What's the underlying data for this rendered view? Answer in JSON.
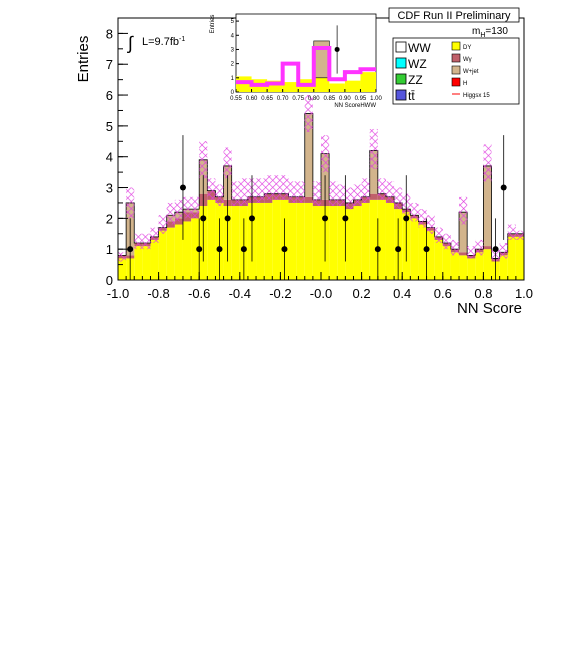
{
  "chart_data": {
    "type": "bar",
    "preliminary_label": "CDF Run II Preliminary",
    "luminosity_label": "L=9.7fb",
    "luminosity_exp": "-1",
    "mass_label_prefix": "m",
    "mass_label_sub": "H",
    "mass_label_value": "=130",
    "xlabel": "NN Score",
    "ylabel": "Entries",
    "xlim": [
      -1.0,
      1.0
    ],
    "ylim": [
      0,
      8.5
    ],
    "xticks": [
      "-1.0",
      "-0.8",
      "-0.6",
      "-0.4",
      "-0.2",
      "-0.0",
      "0.2",
      "0.4",
      "0.6",
      "0.8",
      "1.0"
    ],
    "yticks": [
      "0",
      "1",
      "2",
      "3",
      "4",
      "5",
      "6",
      "7",
      "8"
    ],
    "bin_low_edges": [
      -1.0,
      -0.96,
      -0.92,
      -0.88,
      -0.84,
      -0.8,
      -0.76,
      -0.72,
      -0.68,
      -0.64,
      -0.6,
      -0.56,
      -0.52,
      -0.48,
      -0.44,
      -0.4,
      -0.36,
      -0.32,
      -0.28,
      -0.24,
      -0.2,
      -0.16,
      -0.12,
      -0.08,
      -0.04,
      0.0,
      0.04,
      0.08,
      0.12,
      0.16,
      0.2,
      0.24,
      0.28,
      0.32,
      0.36,
      0.4,
      0.44,
      0.48,
      0.52,
      0.56,
      0.6,
      0.64,
      0.68,
      0.72,
      0.76,
      0.8,
      0.84,
      0.88,
      0.92,
      0.96
    ],
    "series": [
      {
        "name": "DY",
        "color": "#ffff00",
        "values": [
          0.7,
          0.7,
          1.1,
          1.1,
          1.3,
          1.6,
          1.7,
          1.8,
          1.9,
          2.0,
          2.4,
          2.6,
          2.5,
          2.4,
          2.4,
          2.4,
          2.5,
          2.5,
          2.5,
          2.6,
          2.6,
          2.5,
          2.5,
          2.5,
          2.4,
          2.4,
          2.4,
          2.4,
          2.3,
          2.4,
          2.5,
          2.6,
          2.6,
          2.5,
          2.3,
          2.2,
          2.0,
          1.8,
          1.6,
          1.3,
          1.1,
          0.9,
          0.8,
          0.7,
          0.9,
          1.0,
          0.6,
          0.8,
          1.4,
          1.4
        ]
      },
      {
        "name": "Wγ",
        "color": "#c0606a",
        "values": [
          0.1,
          0.1,
          0.1,
          0.1,
          0.1,
          0.1,
          0.2,
          0.2,
          0.3,
          0.2,
          0.4,
          0.3,
          0.2,
          0.2,
          0.2,
          0.2,
          0.2,
          0.2,
          0.3,
          0.2,
          0.2,
          0.2,
          0.2,
          0.2,
          0.2,
          0.2,
          0.2,
          0.2,
          0.2,
          0.2,
          0.2,
          0.2,
          0.2,
          0.2,
          0.2,
          0.1,
          0.1,
          0.1,
          0.1,
          0.1,
          0.1,
          0.1,
          0.1,
          0.1,
          0.1,
          0.1,
          0.1,
          0.1,
          0.1,
          0.1
        ]
      },
      {
        "name": "W+jet",
        "color": "#d2b48c",
        "values": [
          0.0,
          1.7,
          0.0,
          0.0,
          0.0,
          0.0,
          0.2,
          0.2,
          0.1,
          0.1,
          1.1,
          0.0,
          0.0,
          1.1,
          0.0,
          0.0,
          0.0,
          0.0,
          0.0,
          0.0,
          0.0,
          0.0,
          0.0,
          2.7,
          0.0,
          1.5,
          0.0,
          0.0,
          0.0,
          0.0,
          0.0,
          1.4,
          0.0,
          0.0,
          0.0,
          0.0,
          0.0,
          0.0,
          0.0,
          0.0,
          0.0,
          0.0,
          1.3,
          0.0,
          0.0,
          2.6,
          0.0,
          0.0,
          0.0,
          0.0
        ]
      }
    ],
    "uncertainty_band": {
      "color": "#e040e0",
      "total_upper": [
        0.9,
        3.0,
        1.5,
        1.5,
        1.7,
        2.1,
        2.5,
        2.6,
        2.7,
        2.7,
        4.5,
        3.3,
        3.1,
        4.3,
        3.2,
        3.3,
        3.3,
        3.3,
        3.4,
        3.4,
        3.4,
        3.2,
        3.2,
        6.0,
        3.2,
        4.7,
        3.2,
        3.1,
        3.0,
        3.1,
        3.3,
        4.9,
        3.3,
        3.2,
        3.0,
        2.8,
        2.5,
        2.3,
        2.1,
        1.7,
        1.5,
        1.3,
        2.7,
        1.1,
        1.3,
        4.4,
        1.0,
        1.2,
        1.8,
        1.6
      ],
      "total_lower": [
        0.6,
        2.0,
        1.0,
        1.0,
        1.2,
        1.5,
        1.8,
        1.9,
        2.0,
        2.0,
        3.3,
        2.6,
        2.4,
        3.3,
        2.4,
        2.4,
        2.5,
        2.5,
        2.6,
        2.6,
        2.6,
        2.5,
        2.5,
        4.8,
        2.4,
        3.5,
        2.4,
        2.4,
        2.3,
        2.4,
        2.5,
        3.6,
        2.6,
        2.5,
        2.3,
        2.1,
        1.9,
        1.7,
        1.5,
        1.2,
        1.0,
        0.8,
        1.8,
        0.7,
        0.8,
        3.2,
        0.6,
        0.7,
        1.3,
        1.3
      ]
    },
    "data_points": {
      "name": "Data",
      "x": [
        -0.94,
        -0.68,
        -0.6,
        -0.58,
        -0.5,
        -0.46,
        -0.38,
        -0.34,
        -0.18,
        0.02,
        0.12,
        0.28,
        0.38,
        0.42,
        0.52,
        0.86,
        0.9
      ],
      "y": [
        1,
        3,
        1,
        2,
        1,
        2,
        1,
        2,
        1,
        2,
        2,
        1,
        1,
        2,
        1,
        1,
        3
      ],
      "err": [
        1.0,
        1.7,
        1.0,
        1.4,
        1.0,
        1.4,
        1.0,
        1.4,
        1.0,
        1.4,
        1.4,
        1.0,
        1.0,
        1.4,
        1.0,
        1.0,
        1.7
      ]
    },
    "legend": {
      "placement": "top-right",
      "left": [
        {
          "label": "WW",
          "color": "#ffffff"
        },
        {
          "label": "WZ",
          "color": "#00ffff"
        },
        {
          "label": "ZZ",
          "color": "#33cc33"
        },
        {
          "label": "tt̄",
          "color": "#5555dd"
        }
      ],
      "right": [
        {
          "label": "DY",
          "color": "#ffff00"
        },
        {
          "label": "Wγ",
          "color": "#c0606a"
        },
        {
          "label": "W+jet",
          "color": "#d2b48c"
        },
        {
          "label": "H",
          "color": "#ff0000"
        },
        {
          "label": "Higgsx 15",
          "color": "#ff0000",
          "line": true
        }
      ]
    },
    "inset": {
      "xlabel": "NN ScoreHWW",
      "ylabel": "Entries",
      "xlim": [
        0.55,
        1.0
      ],
      "ylim": [
        0,
        5.5
      ],
      "xticks": [
        "0.55",
        "0.60",
        "0.65",
        "0.70",
        "0.75",
        "0.80",
        "0.85",
        "0.90",
        "0.95",
        "1.00"
      ],
      "yticks": [
        "0",
        "1",
        "2",
        "3",
        "4",
        "5"
      ],
      "bin_low_edges": [
        0.55,
        0.6,
        0.65,
        0.7,
        0.75,
        0.8,
        0.85,
        0.9,
        0.95
      ],
      "bkg_dy": [
        1.1,
        0.9,
        0.8,
        0.7,
        0.9,
        1.0,
        0.6,
        0.8,
        1.4
      ],
      "bkg_wjet": [
        0.0,
        0.0,
        0.0,
        0.0,
        0.0,
        2.6,
        0.0,
        0.0,
        0.0
      ],
      "higgs_x15": [
        0.7,
        0.5,
        0.6,
        2.0,
        0.5,
        3.1,
        0.9,
        1.4,
        1.6
      ],
      "data_x": [
        0.875
      ],
      "data_y": [
        3
      ],
      "data_err": [
        1.7
      ]
    }
  }
}
